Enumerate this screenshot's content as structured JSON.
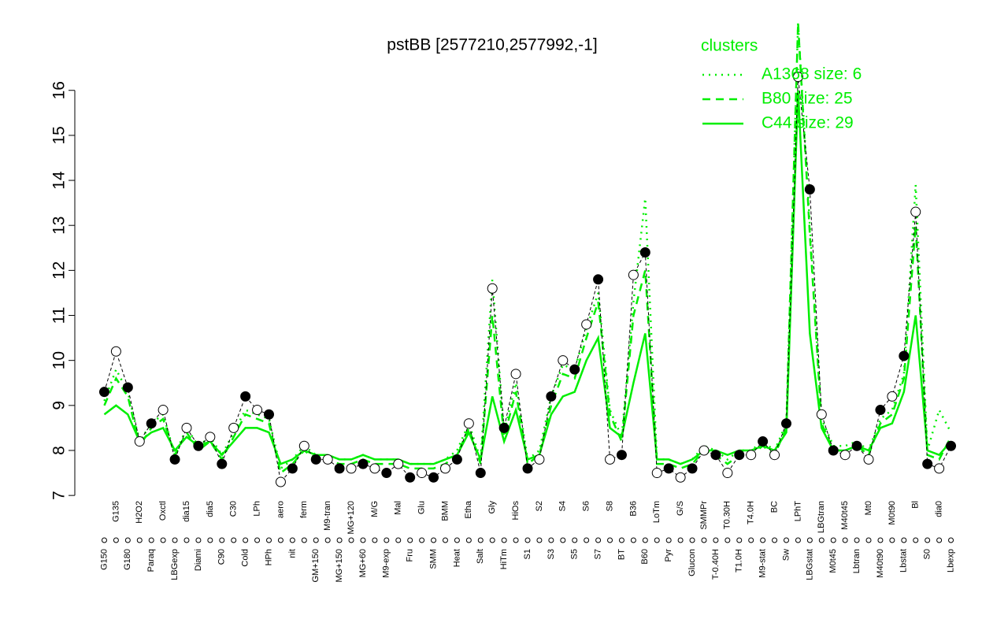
{
  "chart_data": {
    "type": "line",
    "title": "pstBB [2577210,2577992,-1]",
    "categories": [
      "G150",
      "G135",
      "G180",
      "H2O2",
      "Paraq",
      "Oxctl",
      "LBGexp",
      "dia15",
      "Diami",
      "dia5",
      "C90",
      "C30",
      "Cold",
      "LPh",
      "HPh",
      "aero",
      "nit",
      "ferm",
      "GM+150",
      "M9-tran",
      "MG+150",
      "MG+120",
      "MG+60",
      "M/G",
      "M9-exp",
      "Mal",
      "Fru",
      "Glu",
      "SMM",
      "BMM",
      "Heat",
      "Etha",
      "Salt",
      "Gly",
      "HiTm",
      "HiOs",
      "S1",
      "S2",
      "S3",
      "S4",
      "S5",
      "S6",
      "S7",
      "S8",
      "BT",
      "B36",
      "B60",
      "LoTm",
      "Pyr",
      "G/S",
      "Glucon",
      "SMMPr",
      "T-0.40H",
      "T0.30H",
      "T1.0H",
      "T4.0H",
      "M9-stat",
      "BC",
      "Sw",
      "LPhT",
      "LBGstat",
      "LBGtran",
      "M0t45",
      "M40t45",
      "Lbtran",
      "Mt0",
      "M40t90",
      "M0t90",
      "Lbstat",
      "Bl",
      "S0",
      "dia0",
      "Lbexp"
    ],
    "values": [
      9.3,
      10.2,
      9.4,
      8.2,
      8.6,
      8.9,
      7.8,
      8.5,
      8.1,
      8.3,
      7.7,
      8.5,
      9.2,
      8.9,
      8.8,
      7.3,
      7.6,
      8.1,
      7.8,
      7.8,
      7.6,
      7.6,
      7.7,
      7.6,
      7.5,
      7.7,
      7.4,
      7.5,
      7.4,
      7.6,
      7.8,
      8.6,
      7.5,
      11.6,
      8.5,
      9.7,
      7.6,
      7.8,
      9.2,
      10.0,
      9.8,
      10.8,
      11.8,
      7.8,
      7.9,
      11.9,
      12.4,
      7.5,
      7.6,
      7.4,
      7.6,
      8.0,
      7.9,
      7.5,
      7.9,
      7.9,
      8.2,
      7.9,
      8.6,
      16.3,
      13.8,
      8.8,
      8.0,
      7.9,
      8.1,
      7.8,
      8.9,
      9.2,
      10.1,
      13.3,
      7.7,
      7.6,
      8.1
    ],
    "color": "#000000",
    "legend_title": "clusters",
    "legend_color": "#00ee00",
    "series": [
      {
        "name": "A1368 size: 6",
        "color": "#00ee00",
        "dash": "dotted",
        "values": [
          9.1,
          9.8,
          9.3,
          8.2,
          8.6,
          8.8,
          7.9,
          8.5,
          8.1,
          8.3,
          7.9,
          8.4,
          8.9,
          8.8,
          8.7,
          7.6,
          7.8,
          8.1,
          7.9,
          7.9,
          7.8,
          7.8,
          7.9,
          7.8,
          7.8,
          7.8,
          7.7,
          7.7,
          7.7,
          7.8,
          8.0,
          8.6,
          7.8,
          11.8,
          8.4,
          9.5,
          7.8,
          8.0,
          9.2,
          9.9,
          9.8,
          10.7,
          11.5,
          8.9,
          8.3,
          11.3,
          13.6,
          7.8,
          7.8,
          7.7,
          7.8,
          8.1,
          8.0,
          7.8,
          8.0,
          8.0,
          8.2,
          8.0,
          8.6,
          17.5,
          13.0,
          8.7,
          8.1,
          8.1,
          8.2,
          8.0,
          8.7,
          8.9,
          9.7,
          13.9,
          8.0,
          8.9,
          8.4
        ]
      },
      {
        "name": "B80 size: 25",
        "color": "#00ee00",
        "dash": "dashed",
        "values": [
          9.0,
          9.6,
          9.2,
          8.1,
          8.5,
          8.7,
          7.9,
          8.4,
          8.0,
          8.2,
          7.8,
          8.3,
          8.8,
          8.7,
          8.6,
          7.5,
          7.7,
          8.0,
          7.8,
          7.8,
          7.7,
          7.7,
          7.8,
          7.7,
          7.7,
          7.7,
          7.6,
          7.6,
          7.6,
          7.7,
          7.9,
          8.5,
          7.7,
          11.0,
          8.3,
          9.3,
          7.7,
          7.9,
          9.0,
          9.7,
          9.6,
          10.5,
          11.3,
          8.8,
          8.2,
          11.0,
          12.0,
          7.7,
          7.7,
          7.6,
          7.7,
          8.0,
          7.9,
          7.7,
          7.9,
          7.9,
          8.1,
          7.9,
          8.5,
          17.5,
          12.8,
          8.6,
          8.0,
          8.0,
          8.1,
          7.9,
          8.6,
          8.8,
          9.6,
          13.0,
          7.9,
          7.8,
          8.3
        ]
      },
      {
        "name": "C44 size: 29",
        "color": "#00ee00",
        "dash": "solid",
        "values": [
          8.8,
          9.0,
          8.8,
          8.2,
          8.4,
          8.5,
          8.0,
          8.3,
          8.1,
          8.2,
          7.9,
          8.2,
          8.5,
          8.5,
          8.4,
          7.7,
          7.8,
          8.0,
          7.9,
          7.9,
          7.8,
          7.8,
          7.9,
          7.8,
          7.8,
          7.8,
          7.7,
          7.7,
          7.7,
          7.8,
          7.9,
          8.4,
          7.8,
          9.2,
          8.2,
          8.9,
          7.8,
          7.9,
          8.8,
          9.2,
          9.3,
          10.0,
          10.5,
          8.5,
          8.3,
          9.5,
          10.6,
          7.8,
          7.8,
          7.7,
          7.8,
          8.0,
          8.0,
          7.9,
          8.0,
          8.0,
          8.1,
          8.0,
          8.4,
          16.0,
          10.6,
          8.5,
          8.0,
          8.0,
          8.1,
          8.0,
          8.5,
          8.6,
          9.3,
          11.0,
          8.0,
          7.9,
          8.2
        ]
      }
    ],
    "ylim": [
      6.6,
      17.5
    ],
    "yticks": [
      7,
      8,
      9,
      10,
      11,
      12,
      13,
      14,
      15,
      16
    ]
  }
}
